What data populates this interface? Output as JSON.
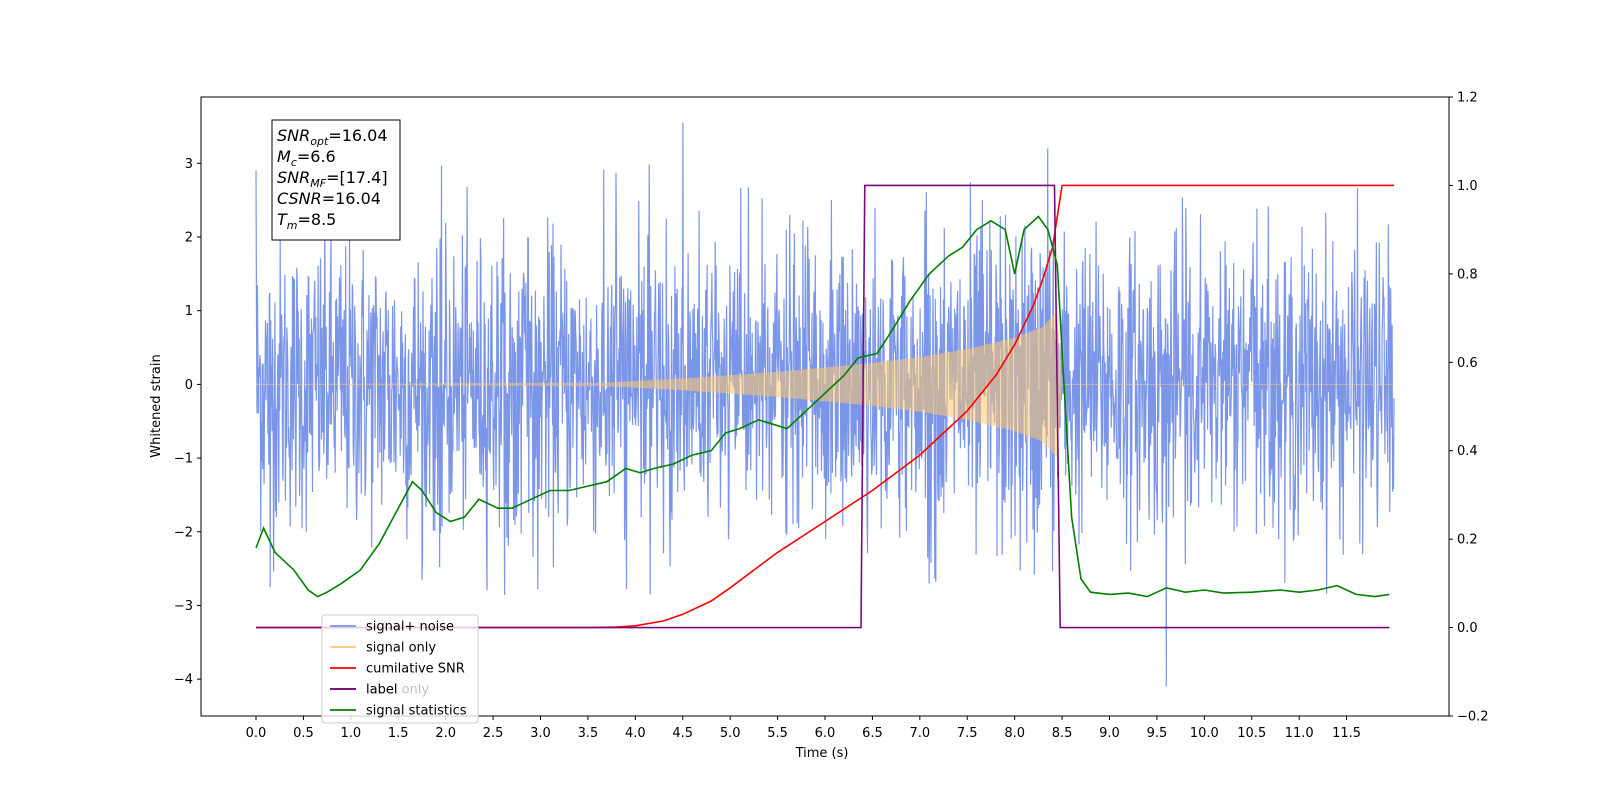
{
  "chart_data": {
    "type": "line",
    "xlabel": "Time (s)",
    "ylabel": "Whitened strain",
    "xlim": [
      -0.58,
      12.58
    ],
    "ylim_left": [
      -4.5,
      3.9
    ],
    "ylim_right": [
      -0.2,
      1.2
    ],
    "x_ticks": [
      "0.0",
      "0.5",
      "1.0",
      "1.5",
      "2.0",
      "2.5",
      "3.0",
      "3.5",
      "4.0",
      "4.5",
      "5.0",
      "5.5",
      "6.0",
      "6.5",
      "7.0",
      "7.5",
      "8.0",
      "8.5",
      "9.0",
      "9.5",
      "10.0",
      "10.5",
      "11.0",
      "11.5"
    ],
    "y_ticks_left": [
      "3",
      "2",
      "1",
      "0",
      "−1",
      "−2",
      "−3",
      "−4"
    ],
    "y_ticks_right": [
      "1.2",
      "1.0",
      "0.8",
      "0.6",
      "0.4",
      "0.2",
      "0.0",
      "−0.2"
    ],
    "annotation": [
      {
        "base": "SNR",
        "sub": "opt",
        "value": "=16.04"
      },
      {
        "base": "M",
        "sub": "c",
        "value": "=6.6"
      },
      {
        "base": "SNR",
        "sub": "MF",
        "value": "=[17.4]"
      },
      {
        "base": "CSNR",
        "sub": "",
        "value": "=16.04"
      },
      {
        "base": "T",
        "sub": "m",
        "value": "=8.5"
      }
    ],
    "legend": [
      {
        "label": "signal+ noise",
        "color": "#7b96e8"
      },
      {
        "label": "signal only",
        "color": "#ffc870"
      },
      {
        "label": "cumilative SNR",
        "color": "#ff0000"
      },
      {
        "label": "label",
        "color": "#7b0a7b"
      },
      {
        "label": "label only",
        "color": "#7b0a7b"
      },
      {
        "label": "signal statistics",
        "color": "#008000"
      }
    ],
    "series": [
      {
        "name": "signal+ noise",
        "axis": "left",
        "color": "#7b96e8",
        "x_range": [
          0.0,
          12.0
        ],
        "envelope_typical": 1.5,
        "notable_extremes": [
          {
            "x": 0.0,
            "y": 2.9
          },
          {
            "x": 4.5,
            "y": 3.55
          },
          {
            "x": 8.35,
            "y": 3.2
          },
          {
            "x": 9.6,
            "y": -4.1
          },
          {
            "x": 0.15,
            "y": -2.75
          }
        ]
      },
      {
        "name": "signal only",
        "axis": "left",
        "color": "#ffc870",
        "x_range": [
          0.0,
          12.0
        ],
        "amplitude_envelope": [
          [
            0.0,
            0.0
          ],
          [
            3.5,
            0.01
          ],
          [
            4.5,
            0.08
          ],
          [
            5.5,
            0.17
          ],
          [
            6.5,
            0.29
          ],
          [
            7.0,
            0.37
          ],
          [
            7.5,
            0.48
          ],
          [
            8.0,
            0.63
          ],
          [
            8.3,
            0.78
          ],
          [
            8.45,
            1.0
          ],
          [
            8.5,
            0.0
          ],
          [
            12.0,
            0.0
          ]
        ]
      },
      {
        "name": "cumilative SNR",
        "axis": "right",
        "color": "#ff0000",
        "x": [
          0.0,
          3.5,
          3.8,
          4.0,
          4.3,
          4.5,
          4.8,
          5.0,
          5.5,
          6.0,
          6.5,
          7.0,
          7.5,
          7.8,
          8.0,
          8.2,
          8.3,
          8.4,
          8.45,
          8.5,
          12.0
        ],
        "y": [
          0.0,
          0.0,
          0.001,
          0.004,
          0.015,
          0.03,
          0.06,
          0.09,
          0.17,
          0.24,
          0.31,
          0.39,
          0.49,
          0.57,
          0.64,
          0.73,
          0.79,
          0.86,
          0.93,
          1.0,
          1.0
        ]
      },
      {
        "name": "label",
        "axis": "right",
        "color": "#7b0a7b",
        "x": [
          0.0,
          6.38,
          6.42,
          8.42,
          8.48,
          11.95
        ],
        "y": [
          0.0,
          0.0,
          1.0,
          1.0,
          0.0,
          0.0
        ]
      },
      {
        "name": "signal statistics",
        "axis": "right",
        "color": "#008000",
        "x": [
          0.0,
          0.08,
          0.2,
          0.4,
          0.55,
          0.65,
          0.75,
          0.9,
          1.1,
          1.3,
          1.5,
          1.65,
          1.75,
          1.9,
          2.05,
          2.2,
          2.35,
          2.55,
          2.7,
          2.9,
          3.1,
          3.3,
          3.5,
          3.7,
          3.9,
          4.05,
          4.2,
          4.4,
          4.6,
          4.8,
          4.95,
          5.1,
          5.3,
          5.45,
          5.6,
          5.8,
          6.0,
          6.2,
          6.35,
          6.55,
          6.7,
          6.9,
          7.1,
          7.3,
          7.45,
          7.6,
          7.75,
          7.9,
          8.0,
          8.1,
          8.25,
          8.35,
          8.45,
          8.52,
          8.6,
          8.7,
          8.8,
          9.0,
          9.2,
          9.4,
          9.6,
          9.8,
          10.0,
          10.2,
          10.5,
          10.8,
          11.0,
          11.2,
          11.4,
          11.6,
          11.8,
          11.95
        ],
        "y": [
          0.18,
          0.225,
          0.17,
          0.13,
          0.085,
          0.07,
          0.08,
          0.1,
          0.13,
          0.19,
          0.27,
          0.33,
          0.31,
          0.26,
          0.24,
          0.25,
          0.29,
          0.27,
          0.27,
          0.29,
          0.31,
          0.31,
          0.32,
          0.33,
          0.36,
          0.35,
          0.36,
          0.37,
          0.39,
          0.4,
          0.44,
          0.45,
          0.47,
          0.46,
          0.45,
          0.49,
          0.53,
          0.57,
          0.61,
          0.62,
          0.67,
          0.74,
          0.8,
          0.84,
          0.86,
          0.9,
          0.92,
          0.9,
          0.8,
          0.9,
          0.93,
          0.9,
          0.82,
          0.55,
          0.25,
          0.11,
          0.08,
          0.075,
          0.078,
          0.07,
          0.09,
          0.08,
          0.085,
          0.078,
          0.08,
          0.085,
          0.08,
          0.085,
          0.095,
          0.075,
          0.07,
          0.075
        ]
      }
    ]
  }
}
